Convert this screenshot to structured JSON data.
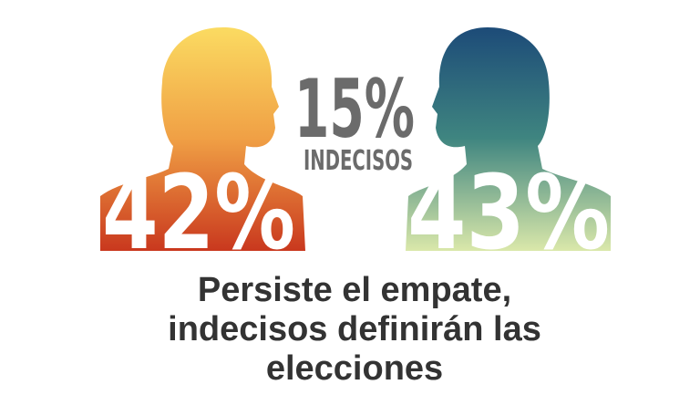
{
  "left": {
    "value": "42%"
  },
  "undecided": {
    "value": "15%",
    "label": "INDECISOS"
  },
  "right": {
    "value": "43%"
  },
  "headline": [
    "Persiste el empate,",
    "indecisos definirán las",
    "elecciones"
  ]
}
